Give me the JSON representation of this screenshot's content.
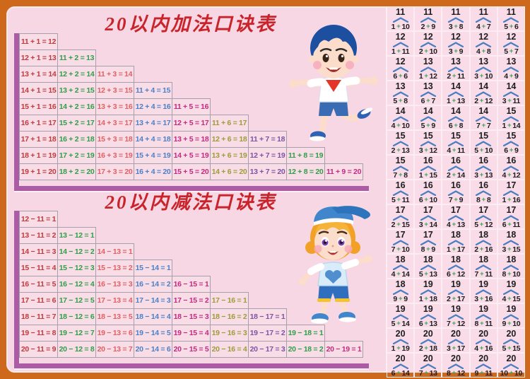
{
  "colors": {
    "frame": "#ce691b",
    "board_bg": "#f7d7e3",
    "bond_bg": "#f9dce8",
    "bar": "#ab5ca5",
    "title_red": "#c9242b",
    "grid_line": "#a79fad",
    "caret_blue": "#4a7ec0",
    "plus_green": "#3aa159",
    "bond_text": "#1d1d1f",
    "columns": [
      "#c13b3d",
      "#2f9e49",
      "#e25f63",
      "#4b80c8",
      "#c42a80",
      "#9d9c3a",
      "#7e52a5",
      "#2f9e49",
      "#c42a80"
    ]
  },
  "addition": {
    "title": "20以内加法口诀表",
    "rows": [
      [
        "11 + 1 = 12"
      ],
      [
        "12 + 1 = 13",
        "11 + 2 = 13"
      ],
      [
        "13 + 1 = 14",
        "12 + 2 = 14",
        "11 + 3 = 14"
      ],
      [
        "14 + 1 = 15",
        "13 + 2 = 15",
        "12 + 3 = 15",
        "11 + 4 = 15"
      ],
      [
        "15 + 1 = 16",
        "14 + 2 = 16",
        "13 + 3 = 16",
        "12 + 4 = 16",
        "11 + 5 = 16"
      ],
      [
        "16 + 1 = 17",
        "15 + 2 = 17",
        "14 + 3 = 17",
        "13 + 4 = 17",
        "12 + 5 = 17",
        "11 + 6 = 17"
      ],
      [
        "17 + 1 = 18",
        "16 + 2 = 18",
        "15 + 3 = 18",
        "14 + 4 = 18",
        "13 + 5 = 18",
        "12 + 6 = 18",
        "11 + 7 = 18"
      ],
      [
        "18 + 1 = 19",
        "17 + 2 = 19",
        "16 + 3 = 19",
        "15 + 4 = 19",
        "14 + 5 = 19",
        "13 + 6 = 19",
        "12 + 7 = 19",
        "11 + 8 = 19"
      ],
      [
        "19 + 1 = 20",
        "18 + 2 = 20",
        "17 + 3 = 20",
        "16 + 4 = 20",
        "15 + 5 = 20",
        "14 + 6 = 20",
        "13 + 7 = 20",
        "12 + 8 = 20",
        "11 + 9 = 20"
      ]
    ]
  },
  "subtraction": {
    "title": "20以内减法口诀表",
    "rows": [
      [
        "12 − 11 = 1"
      ],
      [
        "13 − 11 = 2",
        "13 − 12 = 1"
      ],
      [
        "14 − 11 = 3",
        "14 − 12 = 2",
        "14 − 13 = 1"
      ],
      [
        "15 − 11 = 4",
        "15 − 12 = 3",
        "15 − 13 = 2",
        "15 − 14 = 1"
      ],
      [
        "16 − 11 = 5",
        "16 − 12 = 4",
        "16 − 13 = 3",
        "16 − 14 = 2",
        "16 − 15 = 1"
      ],
      [
        "17 − 11 = 6",
        "17 − 12 = 5",
        "17 − 13 = 4",
        "17 − 14 = 3",
        "17 − 15 = 2",
        "17 − 16 = 1"
      ],
      [
        "18 − 11 = 7",
        "18 − 12 = 6",
        "18 − 13 = 5",
        "18 − 14 = 4",
        "18 − 15 = 3",
        "18 − 16 = 2",
        "18 − 17 = 1"
      ],
      [
        "19 − 11 = 8",
        "19 − 12 = 7",
        "19 − 13 = 6",
        "19 − 14 = 5",
        "19 − 15 = 4",
        "19 − 16 = 3",
        "19 − 17 = 2",
        "19 − 18 = 1"
      ],
      [
        "20 − 11 = 9",
        "20 − 12 = 8",
        "20 − 13 = 7",
        "20 − 14 = 6",
        "20 − 15 = 5",
        "20 − 16 = 4",
        "20 − 17 = 3",
        "20 − 18 = 2",
        "20 − 19 = 1"
      ]
    ]
  },
  "number_bonds": {
    "items": [
      [
        "11",
        "1",
        "10"
      ],
      [
        "11",
        "2",
        "9"
      ],
      [
        "11",
        "3",
        "8"
      ],
      [
        "11",
        "4",
        "7"
      ],
      [
        "11",
        "5",
        "6"
      ],
      [
        "12",
        "1",
        "11"
      ],
      [
        "12",
        "2",
        "10"
      ],
      [
        "12",
        "3",
        "9"
      ],
      [
        "12",
        "4",
        "8"
      ],
      [
        "12",
        "5",
        "7"
      ],
      [
        "12",
        "6",
        "6"
      ],
      [
        "13",
        "1",
        "12"
      ],
      [
        "13",
        "2",
        "11"
      ],
      [
        "13",
        "3",
        "10"
      ],
      [
        "13",
        "4",
        "9"
      ],
      [
        "13",
        "5",
        "8"
      ],
      [
        "13",
        "6",
        "7"
      ],
      [
        "14",
        "1",
        "13"
      ],
      [
        "14",
        "2",
        "12"
      ],
      [
        "14",
        "3",
        "11"
      ],
      [
        "14",
        "4",
        "10"
      ],
      [
        "14",
        "5",
        "9"
      ],
      [
        "14",
        "6",
        "8"
      ],
      [
        "14",
        "7",
        "7"
      ],
      [
        "15",
        "1",
        "14"
      ],
      [
        "15",
        "2",
        "13"
      ],
      [
        "15",
        "3",
        "12"
      ],
      [
        "15",
        "4",
        "11"
      ],
      [
        "15",
        "5",
        "10"
      ],
      [
        "15",
        "6",
        "9"
      ],
      [
        "15",
        "7",
        "8"
      ],
      [
        "16",
        "1",
        "15"
      ],
      [
        "16",
        "2",
        "14"
      ],
      [
        "16",
        "3",
        "13"
      ],
      [
        "16",
        "4",
        "12"
      ],
      [
        "16",
        "5",
        "11"
      ],
      [
        "16",
        "6",
        "10"
      ],
      [
        "16",
        "7",
        "9"
      ],
      [
        "16",
        "8",
        "8"
      ],
      [
        "17",
        "1",
        "16"
      ],
      [
        "17",
        "2",
        "15"
      ],
      [
        "17",
        "3",
        "14"
      ],
      [
        "17",
        "4",
        "13"
      ],
      [
        "17",
        "5",
        "12"
      ],
      [
        "17",
        "6",
        "11"
      ],
      [
        "17",
        "7",
        "10"
      ],
      [
        "17",
        "8",
        "9"
      ],
      [
        "18",
        "1",
        "17"
      ],
      [
        "18",
        "2",
        "16"
      ],
      [
        "18",
        "3",
        "15"
      ],
      [
        "18",
        "4",
        "14"
      ],
      [
        "18",
        "5",
        "13"
      ],
      [
        "18",
        "6",
        "12"
      ],
      [
        "18",
        "7",
        "11"
      ],
      [
        "18",
        "8",
        "10"
      ],
      [
        "18",
        "9",
        "9"
      ],
      [
        "19",
        "1",
        "18"
      ],
      [
        "19",
        "2",
        "17"
      ],
      [
        "19",
        "3",
        "16"
      ],
      [
        "19",
        "4",
        "15"
      ],
      [
        "19",
        "5",
        "14"
      ],
      [
        "19",
        "6",
        "13"
      ],
      [
        "19",
        "7",
        "12"
      ],
      [
        "19",
        "8",
        "11"
      ],
      [
        "19",
        "9",
        "10"
      ],
      [
        "20",
        "1",
        "19"
      ],
      [
        "20",
        "2",
        "18"
      ],
      [
        "20",
        "3",
        "17"
      ],
      [
        "20",
        "4",
        "16"
      ],
      [
        "20",
        "5",
        "15"
      ],
      [
        "20",
        "6",
        "14"
      ],
      [
        "20",
        "7",
        "13"
      ],
      [
        "20",
        "8",
        "12"
      ],
      [
        "20",
        "9",
        "11"
      ],
      [
        "20",
        "10",
        "10"
      ]
    ]
  }
}
